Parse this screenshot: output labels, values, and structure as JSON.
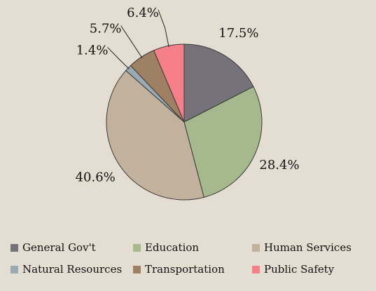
{
  "chart_data": {
    "type": "pie",
    "categories": [
      "General Gov't",
      "Education",
      "Human Services",
      "Natural Resources",
      "Transportation",
      "Public Safety"
    ],
    "values": [
      17.5,
      28.4,
      40.6,
      1.4,
      5.7,
      6.4
    ],
    "labels": [
      "17.5%",
      "28.4%",
      "40.6%",
      "1.4%",
      "5.7%",
      "6.4%"
    ],
    "colors": [
      "#75727a",
      "#a6b98c",
      "#c2b19d",
      "#9aaab3",
      "#9e8062",
      "#f5808a"
    ],
    "start_angle_deg": 0,
    "direction": "clockwise",
    "legend_position": "bottom"
  }
}
